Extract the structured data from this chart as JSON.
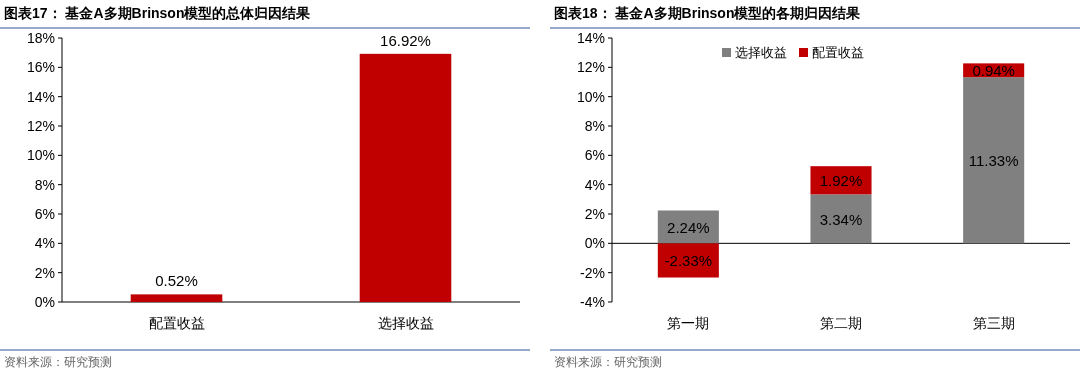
{
  "chart_data": [
    {
      "type": "bar",
      "title": "图表17：  基金A多期Brinson模型的总体归因结果",
      "categories": [
        "配置收益",
        "选择收益"
      ],
      "values": [
        0.52,
        16.92
      ],
      "color": "#c00000",
      "ylim": [
        0,
        18
      ],
      "yticks": [
        {
          "value": 0,
          "label": "0%"
        },
        {
          "value": 2,
          "label": "2%"
        },
        {
          "value": 4,
          "label": "4%"
        },
        {
          "value": 6,
          "label": "6%"
        },
        {
          "value": 8,
          "label": "8%"
        },
        {
          "value": 10,
          "label": "10%"
        },
        {
          "value": 12,
          "label": "12%"
        },
        {
          "value": 14,
          "label": "14%"
        },
        {
          "value": 16,
          "label": "16%"
        },
        {
          "value": 18,
          "label": "18%"
        }
      ],
      "value_labels": [
        "0.52%",
        "16.92%"
      ],
      "annotations": [
        "资料来源：研究预测"
      ]
    },
    {
      "type": "bar",
      "title": "图表18：  基金A多期Brinson模型的各期归因结果",
      "categories": [
        "第一期",
        "第二期",
        "第三期"
      ],
      "stacked": true,
      "legend": "top left",
      "series": [
        {
          "name": "选择收益",
          "color": "#808080",
          "values": [
            2.24,
            3.34,
            11.33
          ],
          "value_labels": [
            "2.24%",
            "3.34%",
            "11.33%"
          ]
        },
        {
          "name": "配置收益",
          "color": "#c00000",
          "values": [
            -2.33,
            1.92,
            0.94
          ],
          "value_labels": [
            "-2.33%",
            "1.92%",
            "0.94%"
          ]
        }
      ],
      "ylim": [
        -4,
        14
      ],
      "yticks": [
        {
          "value": -4,
          "label": "-4%"
        },
        {
          "value": -2,
          "label": "-2%"
        },
        {
          "value": 0,
          "label": "0%"
        },
        {
          "value": 2,
          "label": "2%"
        },
        {
          "value": 4,
          "label": "4%"
        },
        {
          "value": 6,
          "label": "6%"
        },
        {
          "value": 8,
          "label": "8%"
        },
        {
          "value": 10,
          "label": "10%"
        },
        {
          "value": 12,
          "label": "12%"
        },
        {
          "value": 14,
          "label": "14%"
        }
      ],
      "annotations": [
        "资料来源：研究预测"
      ]
    }
  ]
}
